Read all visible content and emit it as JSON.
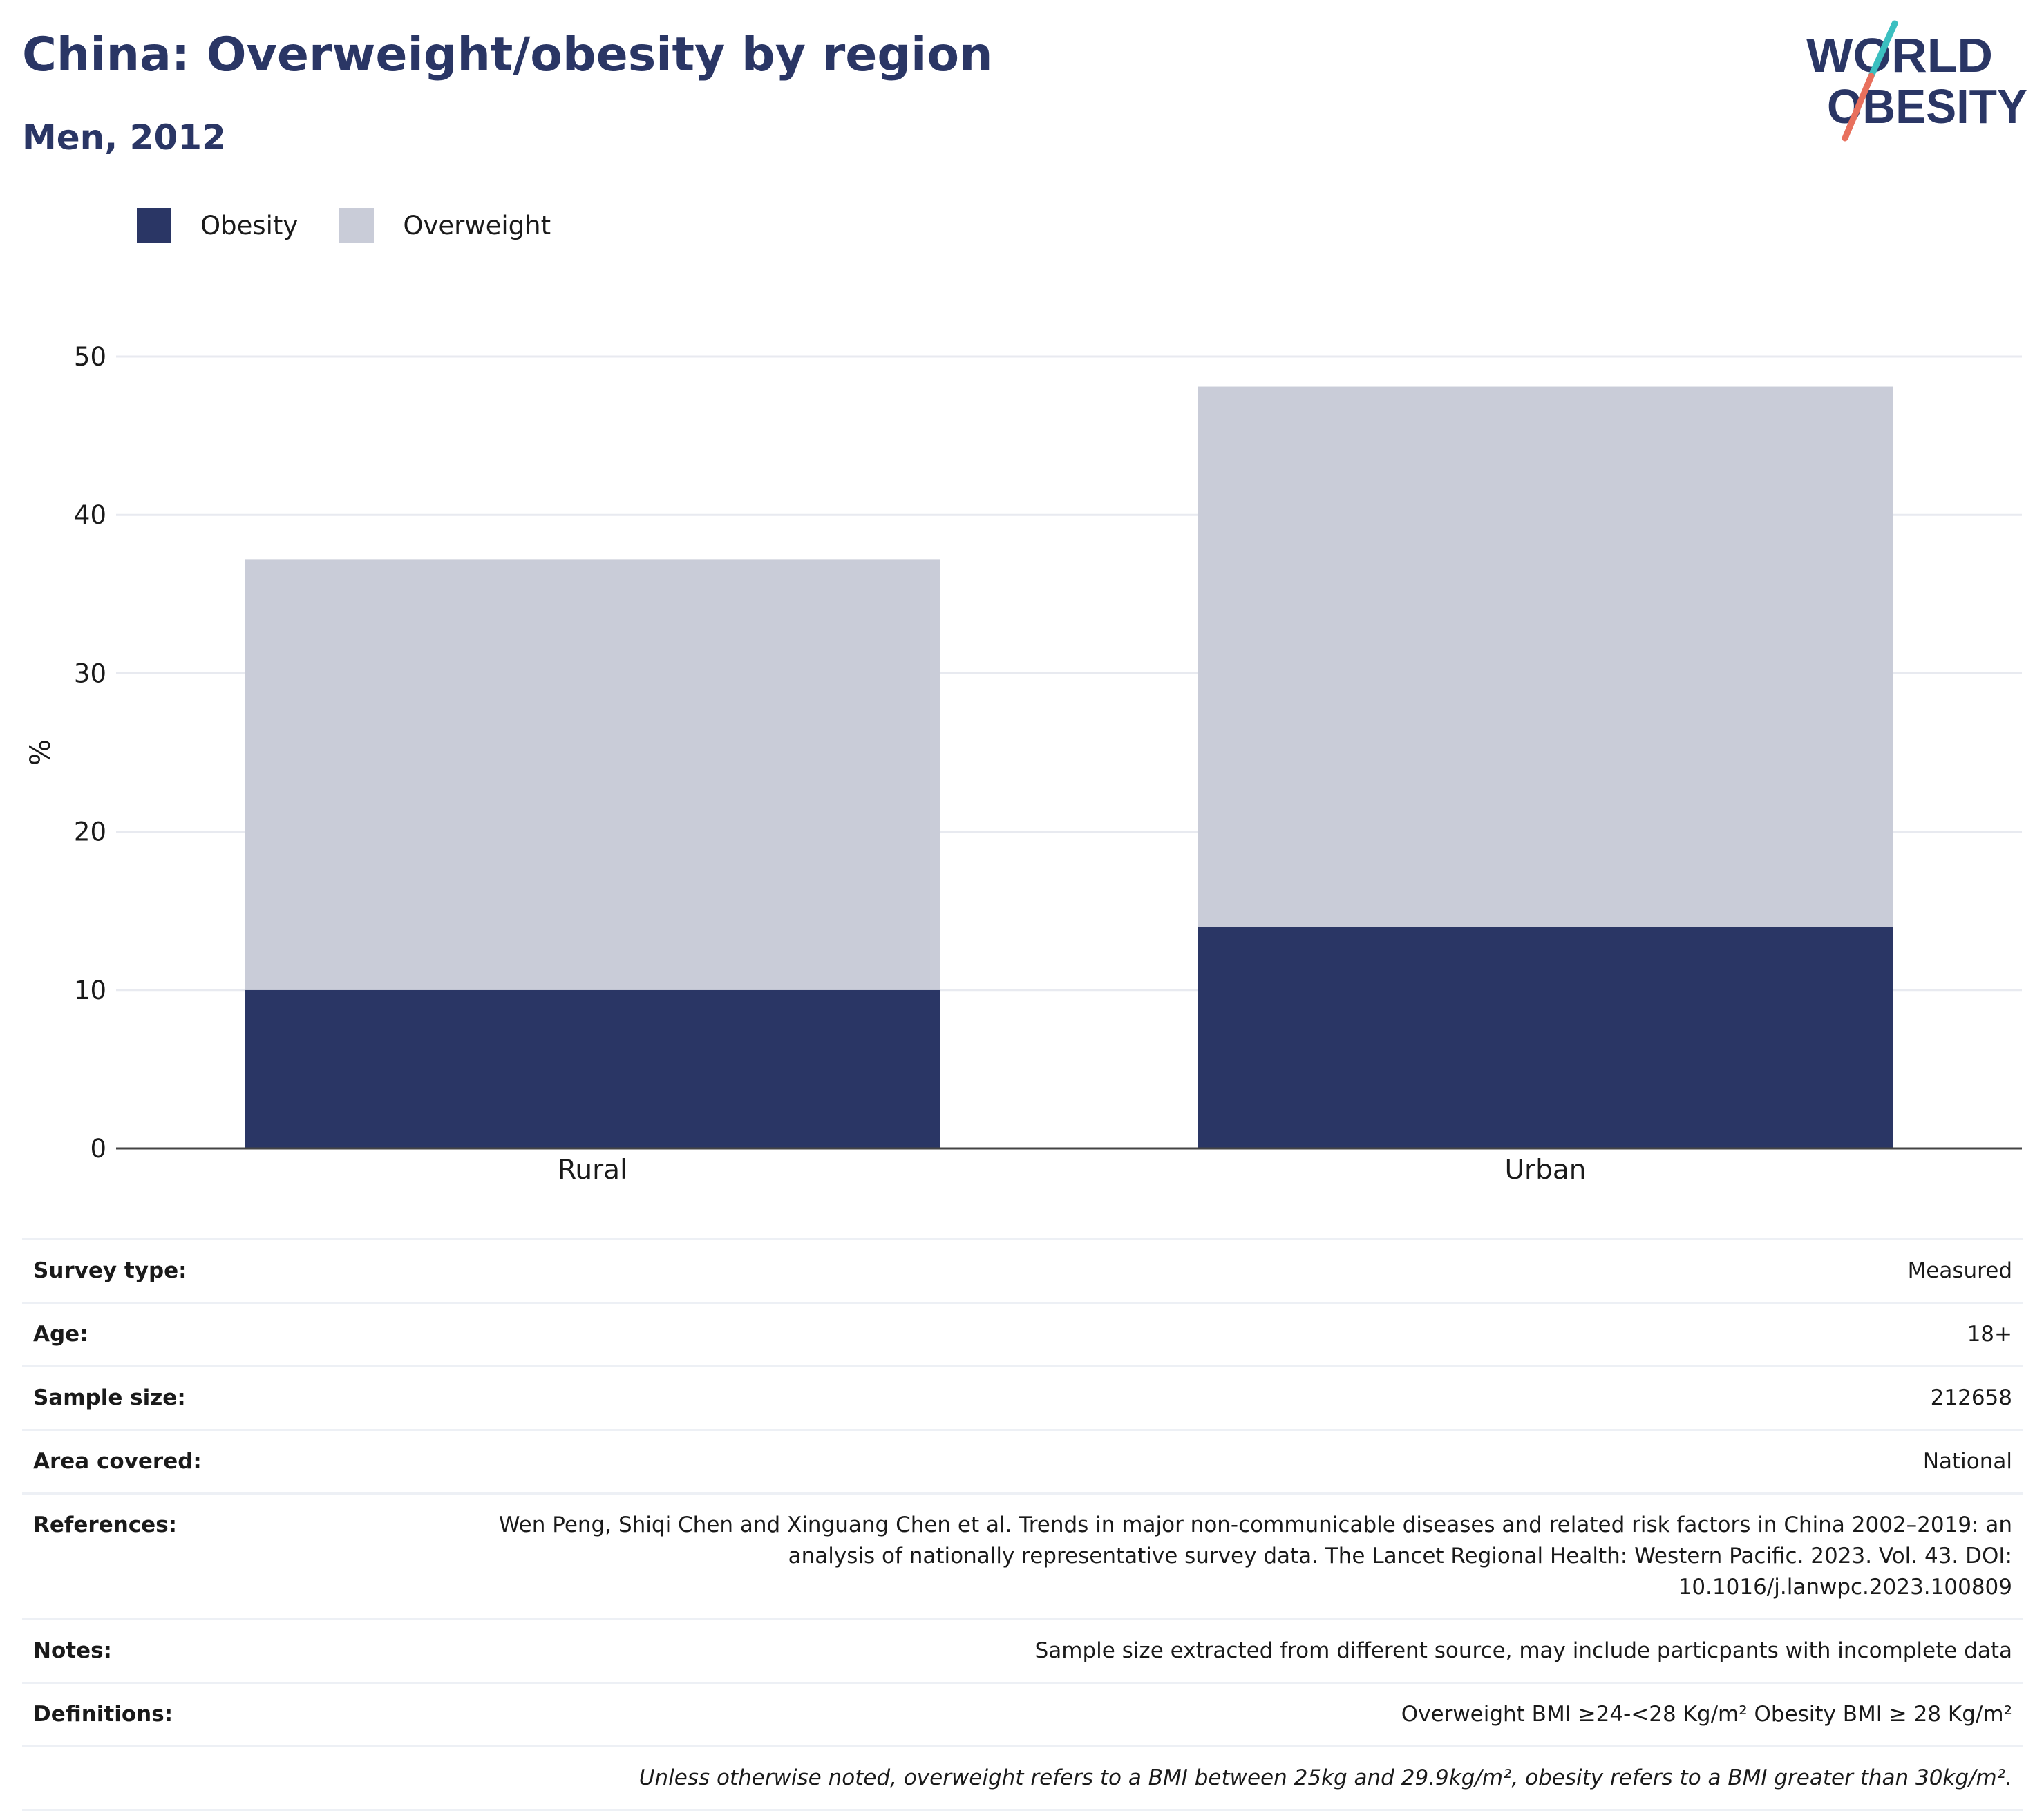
{
  "header": {
    "title": "China: Overweight/obesity by region",
    "subtitle": "Men, 2012"
  },
  "logo": {
    "line1": "WORLD",
    "line2": "OBESITY",
    "colors": {
      "text": "#2a3665",
      "slash_top": "#3bbfc0",
      "slash_bottom": "#e8705d"
    }
  },
  "legend": [
    {
      "label": "Obesity",
      "color": "#2a3665"
    },
    {
      "label": "Overweight",
      "color": "#c9ccd8"
    }
  ],
  "chart_data": {
    "type": "bar",
    "stacked": true,
    "categories": [
      "Rural",
      "Urban"
    ],
    "series": [
      {
        "name": "Obesity",
        "color": "#2a3665",
        "values": [
          10.0,
          14.0
        ]
      },
      {
        "name": "Overweight",
        "color": "#c9ccd8",
        "values": [
          27.2,
          34.1
        ]
      }
    ],
    "title": "China: Overweight/obesity by region",
    "subtitle": "Men, 2012",
    "xlabel": "",
    "ylabel": "%",
    "ylim": [
      0,
      50
    ],
    "yticks": [
      "0",
      "10",
      "20",
      "30",
      "40",
      "50"
    ],
    "grid": true,
    "legend_position": "top-left"
  },
  "metadata": {
    "rows": [
      {
        "label": "Survey type:",
        "value": "Measured"
      },
      {
        "label": "Age:",
        "value": "18+"
      },
      {
        "label": "Sample size:",
        "value": "212658"
      },
      {
        "label": "Area covered:",
        "value": "National"
      },
      {
        "label": "References:",
        "value": "Wen Peng, Shiqi Chen and Xinguang Chen et al. Trends in major non-communicable diseases and related risk factors in China 2002–2019: an analysis of nationally representative survey data. The Lancet Regional Health: Western Pacific. 2023. Vol. 43. DOI: 10.1016/j.lanwpc.2023.100809"
      },
      {
        "label": "Notes:",
        "value": "Sample size extracted from different source, may include particpants with incomplete data"
      },
      {
        "label": "Definitions:",
        "value": "Overweight BMI ≥24-<28 Kg/m² Obesity BMI ≥ 28 Kg/m²"
      }
    ],
    "footnote": "Unless otherwise noted, overweight refers to a BMI between 25kg and 29.9kg/m², obesity refers to a BMI greater than 30kg/m²."
  }
}
